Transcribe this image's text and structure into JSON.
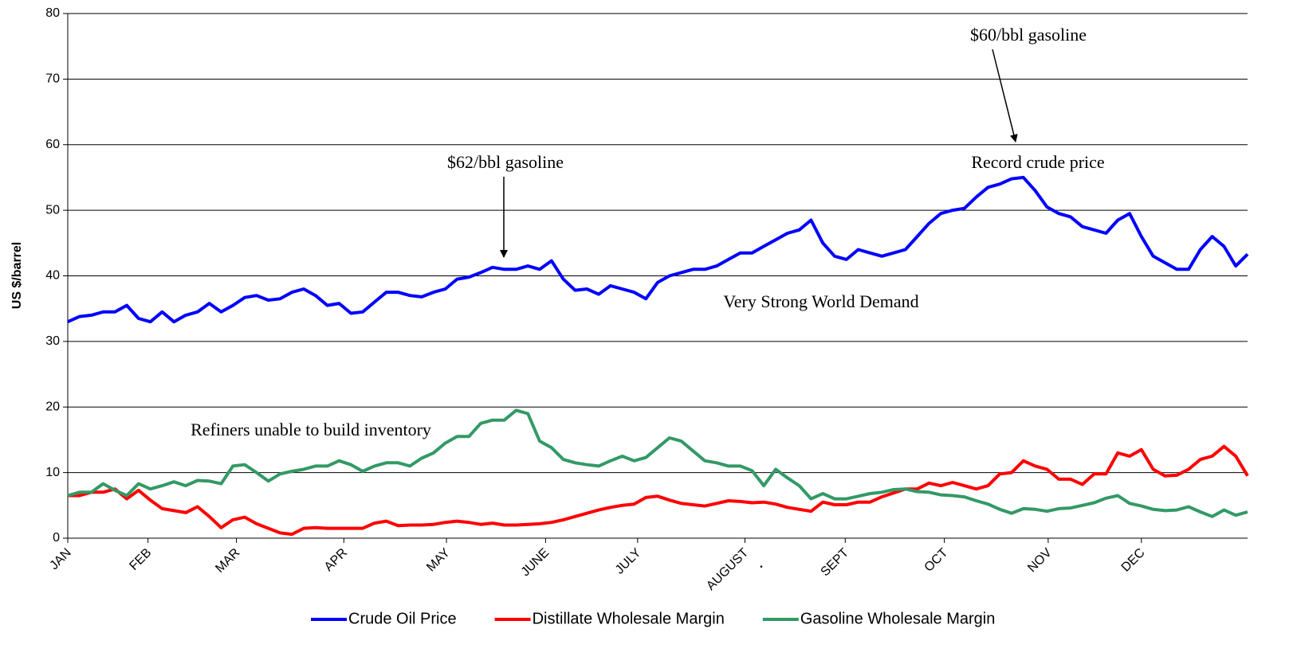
{
  "chart_data": {
    "type": "line",
    "ylabel": "US $/barrel",
    "x": [
      0,
      1,
      2,
      3,
      4,
      5,
      6,
      7,
      8,
      9,
      10,
      11,
      12,
      13,
      14,
      15,
      16,
      17,
      18,
      19,
      20,
      21,
      22,
      23,
      24,
      25,
      26,
      27,
      28,
      29,
      30,
      31,
      32,
      33,
      34,
      35,
      36,
      37,
      38,
      39,
      40,
      41,
      42,
      43,
      44,
      45,
      46,
      47,
      48,
      49,
      50,
      51,
      52,
      53,
      54,
      55,
      56,
      57,
      58,
      59,
      60,
      61,
      62,
      63,
      64,
      65,
      66,
      67,
      68,
      69,
      70,
      71,
      72,
      73,
      74,
      75,
      76,
      77,
      78,
      79,
      80,
      81,
      82,
      83,
      84,
      85,
      86,
      87,
      88,
      89,
      90,
      91,
      92,
      93,
      94,
      95,
      96,
      97,
      98,
      99,
      100
    ],
    "xlim": [
      0,
      100
    ],
    "xticks": [
      {
        "value": 0,
        "label": "JAN"
      },
      {
        "value": 6.8,
        "label": "FEB"
      },
      {
        "value": 14.3,
        "label": "MAR"
      },
      {
        "value": 23.4,
        "label": "APR"
      },
      {
        "value": 32.1,
        "label": "MAY"
      },
      {
        "value": 40.5,
        "label": "JUNE"
      },
      {
        "value": 48.3,
        "label": "JULY"
      },
      {
        "value": 57.4,
        "label": "AUGUST"
      },
      {
        "value": 65.9,
        "label": "SEPT"
      },
      {
        "value": 74.3,
        "label": "OCT"
      },
      {
        "value": 83.1,
        "label": "NOV"
      },
      {
        "value": 91.0,
        "label": "DEC"
      }
    ],
    "ylim": [
      0,
      80
    ],
    "yticks": [
      0,
      10,
      20,
      30,
      40,
      50,
      60,
      70,
      80
    ],
    "grid": true,
    "legend": "bottom",
    "series": [
      {
        "name": "Crude Oil Price",
        "color": "#0000ff",
        "values": [
          33,
          33.8,
          34,
          34.5,
          34.5,
          35.5,
          33.5,
          33,
          34.5,
          33,
          34,
          34.5,
          35.8,
          34.5,
          35.5,
          36.7,
          37,
          36.3,
          36.5,
          37.5,
          38,
          37,
          35.5,
          35.8,
          34.3,
          34.5,
          36,
          37.5,
          37.5,
          37,
          36.8,
          37.5,
          38,
          39.5,
          39.8,
          40.5,
          41.3,
          41,
          41,
          41.5,
          41,
          42.3,
          39.5,
          37.8,
          38,
          37.2,
          38.5,
          38,
          37.5,
          36.5,
          39,
          40,
          40.5,
          41,
          41,
          41.5,
          42.5,
          43.5,
          43.5,
          44.5,
          45.5,
          46.5,
          47,
          48.5,
          45,
          43,
          42.5,
          44,
          43.5,
          43,
          43.5,
          44,
          46,
          48,
          49.5,
          50,
          50.3,
          52,
          53.5,
          54,
          54.8,
          55,
          53,
          50.5,
          49.5,
          49,
          47.5,
          47,
          46.5,
          48.5,
          49.5,
          46,
          43,
          42,
          41,
          41,
          44,
          46,
          44.5,
          41.5,
          43.3
        ]
      },
      {
        "name": "Distillate Wholesale Margin",
        "color": "#ff0000",
        "values": [
          6.5,
          6.5,
          7,
          7,
          7.5,
          6,
          7.3,
          5.8,
          4.5,
          4.2,
          3.9,
          4.8,
          3.3,
          1.6,
          2.8,
          3.2,
          2.2,
          1.5,
          0.8,
          0.6,
          1.5,
          1.6,
          1.5,
          1.5,
          1.5,
          1.5,
          2.3,
          2.6,
          1.9,
          2,
          2,
          2.1,
          2.4,
          2.6,
          2.4,
          2.1,
          2.3,
          2,
          2,
          2.1,
          2.2,
          2.4,
          2.8,
          3.3,
          3.8,
          4.3,
          4.7,
          5,
          5.2,
          6.2,
          6.4,
          5.8,
          5.3,
          5.1,
          4.9,
          5.3,
          5.7,
          5.6,
          5.4,
          5.5,
          5.2,
          4.7,
          4.4,
          4.1,
          5.5,
          5.1,
          5.1,
          5.5,
          5.5,
          6.3,
          6.9,
          7.5,
          7.5,
          8.4,
          8,
          8.5,
          8,
          7.5,
          8,
          9.8,
          10,
          11.8,
          11,
          10.5,
          9,
          9,
          8.2,
          9.8,
          9.8,
          13,
          12.5,
          13.5,
          10.5,
          9.5,
          9.6,
          10.5,
          12,
          12.5,
          14,
          12.5,
          9.5
        ]
      },
      {
        "name": "Gasoline Wholesale Margin",
        "color": "#339966",
        "values": [
          6.5,
          7,
          7,
          8.3,
          7.3,
          6.5,
          8.3,
          7.5,
          8,
          8.6,
          8,
          8.8,
          8.7,
          8.3,
          11,
          11.2,
          10,
          8.7,
          9.8,
          10.2,
          10.5,
          11,
          11,
          11.8,
          11.2,
          10.2,
          11,
          11.5,
          11.5,
          11,
          12.2,
          13,
          14.5,
          15.5,
          15.5,
          17.5,
          18,
          18,
          19.5,
          19,
          14.8,
          13.8,
          12,
          11.5,
          11.2,
          11,
          11.8,
          12.5,
          11.8,
          12.3,
          13.8,
          15.3,
          14.8,
          13.3,
          11.8,
          11.5,
          11,
          11,
          10.3,
          8,
          10.5,
          9.2,
          8,
          6,
          6.8,
          6,
          6,
          6.4,
          6.8,
          7,
          7.4,
          7.5,
          7.1,
          7,
          6.6,
          6.5,
          6.3,
          5.7,
          5.2,
          4.4,
          3.8,
          4.5,
          4.4,
          4.1,
          4.5,
          4.6,
          5,
          5.4,
          6.1,
          6.5,
          5.3,
          4.9,
          4.4,
          4.2,
          4.3,
          4.8,
          4,
          3.3,
          4.3,
          3.5,
          4
        ]
      }
    ],
    "annotations": [
      "$60/bbl gasoline",
      "$62/bbl gasoline",
      "Record crude price",
      "Very Strong World Demand",
      "Refiners unable to build inventory",
      "."
    ]
  }
}
